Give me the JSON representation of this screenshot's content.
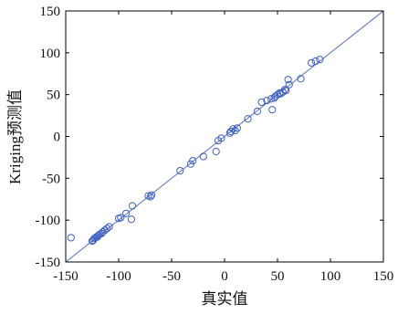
{
  "chart_data": {
    "type": "scatter",
    "title": "",
    "xlabel": "真实值",
    "ylabel": "Kriging预测值",
    "xlim": [
      -150,
      150
    ],
    "ylim": [
      -150,
      150
    ],
    "xticks": [
      -150,
      -100,
      -50,
      0,
      50,
      100,
      150
    ],
    "yticks": [
      -150,
      -100,
      -50,
      0,
      50,
      100,
      150
    ],
    "xtick_labels": [
      "-150",
      "-100",
      "-50",
      "0",
      "50",
      "100",
      "150"
    ],
    "ytick_labels": [
      "-150",
      "-100",
      "-50",
      "0",
      "50",
      "100",
      "150"
    ],
    "grid": false,
    "marker": "open-circle",
    "point_color": "#3f5fbf",
    "reference_line": {
      "type": "y=x",
      "color": "#6f86cf"
    },
    "x": [
      -145,
      -125,
      -124,
      -123,
      -122,
      -121,
      -120,
      -119,
      -118,
      -116,
      -115,
      -113,
      -111,
      -109,
      -100,
      -98,
      -93,
      -88,
      -87,
      -72,
      -70,
      -69,
      -42,
      -32,
      -30,
      -20,
      -8,
      -6,
      -3,
      5,
      6,
      8,
      10,
      12,
      22,
      31,
      35,
      40,
      44,
      45,
      47,
      48,
      50,
      52,
      53,
      55,
      57,
      58,
      60,
      61,
      72,
      82,
      86,
      90
    ],
    "y": [
      -121,
      -125,
      -124,
      -122,
      -121,
      -120,
      -120,
      -118,
      -117,
      -116,
      -114,
      -112,
      -110,
      -108,
      -98,
      -97,
      -92,
      -99,
      -83,
      -71,
      -72,
      -70,
      -41,
      -33,
      -29,
      -24,
      -18,
      -5,
      -2,
      4,
      6,
      9,
      7,
      10,
      21,
      30,
      41,
      43,
      45,
      32,
      46,
      48,
      50,
      52,
      51,
      53,
      56,
      55,
      68,
      62,
      69,
      88,
      90,
      92
    ]
  }
}
